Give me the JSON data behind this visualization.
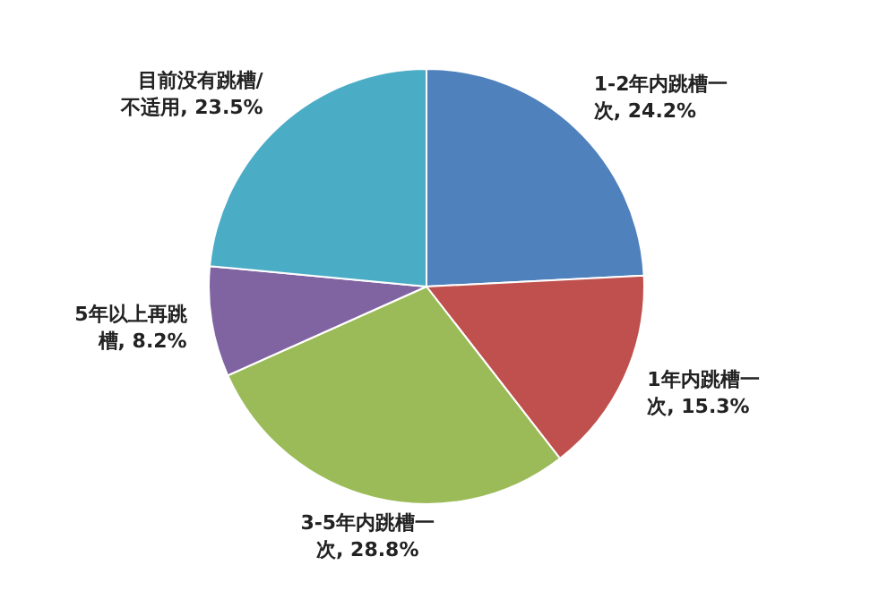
{
  "chart_data": {
    "type": "pie",
    "categories": [
      "1-2年内跳槽一次",
      "1年内跳槽一次",
      "3-5年内跳槽一次",
      "5年以上再跳槽",
      "目前没有跳槽/不适用"
    ],
    "values": [
      24.2,
      15.3,
      28.8,
      8.2,
      23.5
    ],
    "value_labels": [
      "24.2%",
      "15.3%",
      "28.8%",
      "8.2%",
      "23.5%"
    ],
    "colors": [
      "#4f81bd",
      "#c0504d",
      "#9bbb59",
      "#8064a2",
      "#4bacc6"
    ],
    "data_labels": true,
    "legend": false
  }
}
